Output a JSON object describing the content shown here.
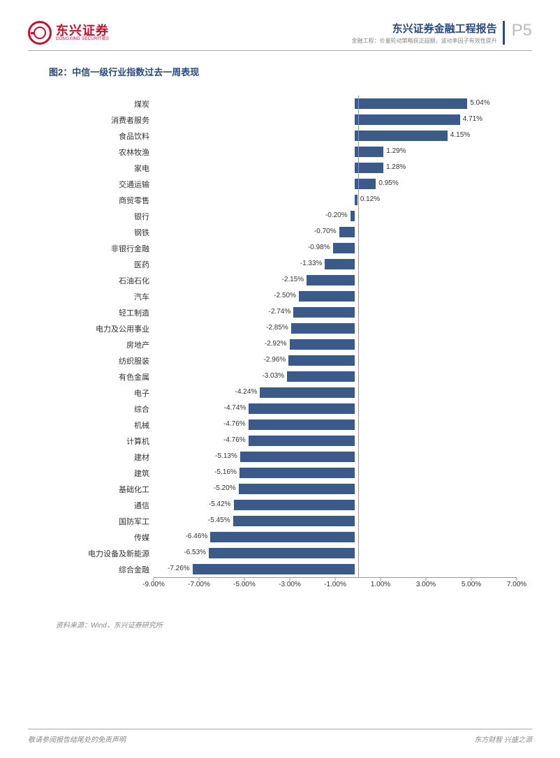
{
  "header": {
    "logo_cn": "东兴证券",
    "logo_en": "DONGXING SECURITIES",
    "title": "东兴证券金融工程报告",
    "subtitle": "金融工程：价量轮动策略获正超额，波动率因子有效性提升",
    "page_num": "P5"
  },
  "chart": {
    "title": "图2：中信一级行业指数过去一周表现",
    "type": "bar-horizontal",
    "bar_color": "#3a5a8a",
    "axis_color": "#999999",
    "text_color": "#333333",
    "xlim": [
      -9,
      7
    ],
    "xticks": [
      {
        "v": -9,
        "label": "-9.00%"
      },
      {
        "v": -7,
        "label": "-7.00%"
      },
      {
        "v": -5,
        "label": "-5.00%"
      },
      {
        "v": -3,
        "label": "-3.00%"
      },
      {
        "v": -1,
        "label": "-1.00%"
      },
      {
        "v": 1,
        "label": "1.00%"
      },
      {
        "v": 3,
        "label": "3.00%"
      },
      {
        "v": 5,
        "label": "5.00%"
      },
      {
        "v": 7,
        "label": "7.00%"
      }
    ],
    "rows": [
      {
        "cat": "煤炭",
        "val": 5.04,
        "label": "5.04%"
      },
      {
        "cat": "消费者服务",
        "val": 4.71,
        "label": "4.71%"
      },
      {
        "cat": "食品饮料",
        "val": 4.15,
        "label": "4.15%"
      },
      {
        "cat": "农林牧渔",
        "val": 1.29,
        "label": "1.29%"
      },
      {
        "cat": "家电",
        "val": 1.28,
        "label": "1.28%"
      },
      {
        "cat": "交通运输",
        "val": 0.95,
        "label": "0.95%"
      },
      {
        "cat": "商贸零售",
        "val": 0.12,
        "label": "0.12%"
      },
      {
        "cat": "银行",
        "val": -0.2,
        "label": "-0.20%"
      },
      {
        "cat": "钢铁",
        "val": -0.7,
        "label": "-0.70%"
      },
      {
        "cat": "非银行金融",
        "val": -0.98,
        "label": "-0.98%"
      },
      {
        "cat": "医药",
        "val": -1.33,
        "label": "-1.33%"
      },
      {
        "cat": "石油石化",
        "val": -2.15,
        "label": "-2.15%"
      },
      {
        "cat": "汽车",
        "val": -2.5,
        "label": "-2.50%"
      },
      {
        "cat": "轻工制造",
        "val": -2.74,
        "label": "-2.74%"
      },
      {
        "cat": "电力及公用事业",
        "val": -2.85,
        "label": "-2.85%"
      },
      {
        "cat": "房地产",
        "val": -2.92,
        "label": "-2.92%"
      },
      {
        "cat": "纺织服装",
        "val": -2.96,
        "label": "-2.96%"
      },
      {
        "cat": "有色金属",
        "val": -3.03,
        "label": "-3.03%"
      },
      {
        "cat": "电子",
        "val": -4.24,
        "label": "-4.24%"
      },
      {
        "cat": "综合",
        "val": -4.74,
        "label": "-4.74%"
      },
      {
        "cat": "机械",
        "val": -4.76,
        "label": "-4.76%"
      },
      {
        "cat": "计算机",
        "val": -4.76,
        "label": "-4.76%"
      },
      {
        "cat": "建材",
        "val": -5.13,
        "label": "-5.13%"
      },
      {
        "cat": "建筑",
        "val": -5.16,
        "label": "-5.16%"
      },
      {
        "cat": "基础化工",
        "val": -5.2,
        "label": "-5.20%"
      },
      {
        "cat": "通信",
        "val": -5.42,
        "label": "-5.42%"
      },
      {
        "cat": "国防军工",
        "val": -5.45,
        "label": "-5.45%"
      },
      {
        "cat": "传媒",
        "val": -6.46,
        "label": "-6.46%"
      },
      {
        "cat": "电力设备及新能源",
        "val": -6.53,
        "label": "-6.53%"
      },
      {
        "cat": "综合金融",
        "val": -7.26,
        "label": "-7.26%"
      }
    ]
  },
  "source": "资料来源：Wind，东兴证券研究所",
  "footer": {
    "left": "敬请参阅报告结尾处的免责声明",
    "right": "东方财智 兴盛之源"
  }
}
